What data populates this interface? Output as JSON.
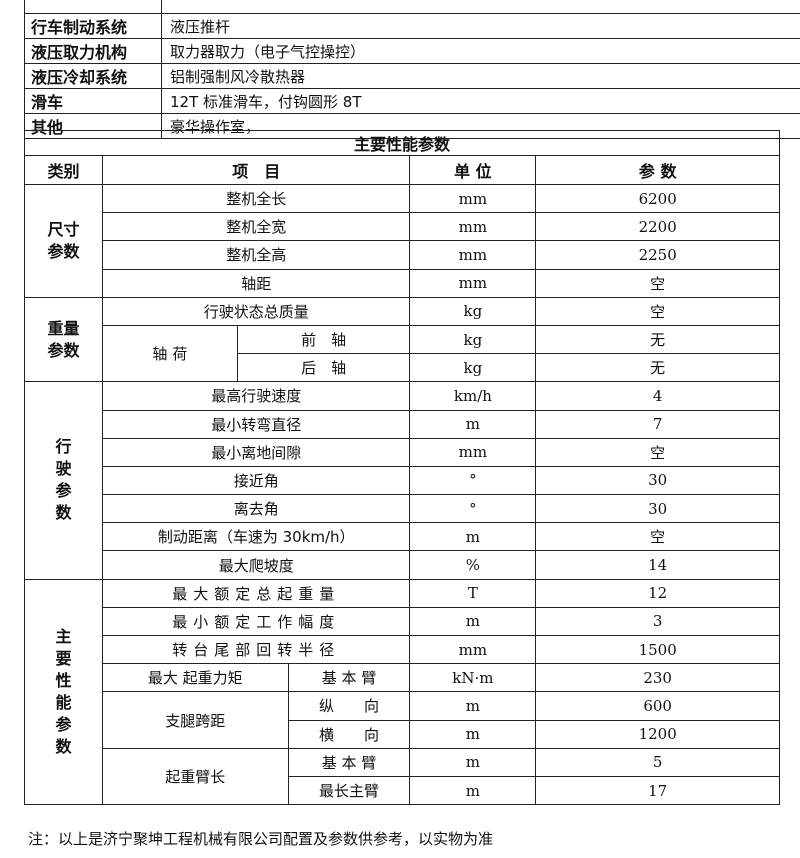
{
  "spec": [
    {
      "k": "",
      "v": ""
    },
    {
      "k": "行车制动系统",
      "v": "液压推杆"
    },
    {
      "k": "液压取力机构",
      "v": "取力器取力（电子气控操控）"
    },
    {
      "k": "液压冷却系统",
      "v": "铝制强制风冷散热器"
    },
    {
      "k": "滑车",
      "v": "12T 标准滑车，付钩圆形 8T"
    },
    {
      "k": "其他",
      "v": "豪华操作室，"
    }
  ],
  "main": {
    "title": "主要性能参数",
    "headers": [
      "类别",
      "项　目",
      "单 位",
      "参 数"
    ],
    "cats": [
      "尺寸参数",
      "重量参数",
      "行驶参数",
      "主要性能参数"
    ],
    "size": [
      [
        "整机全长",
        "mm",
        "6200"
      ],
      [
        "整机全宽",
        "mm",
        "2200"
      ],
      [
        "整机全高",
        "mm",
        "2250"
      ],
      [
        "轴距",
        "mm",
        "空"
      ]
    ],
    "weight": {
      "total": [
        "行驶状态总质量",
        "kg",
        "空"
      ],
      "axle": "轴 荷",
      "front": [
        "前　轴",
        "kg",
        "无"
      ],
      "rear": [
        "后　轴",
        "kg",
        "无"
      ]
    },
    "travel": [
      [
        "最高行驶速度",
        "km/h",
        "4"
      ],
      [
        "最小转弯直径",
        "m",
        "7"
      ],
      [
        "最小离地间隙",
        "mm",
        "空"
      ],
      [
        "接近角",
        "°",
        "30"
      ],
      [
        "离去角",
        "°",
        "30"
      ],
      [
        "制动距离（车速为 30km/h）",
        "m",
        "空"
      ],
      [
        "最大爬坡度",
        "%",
        "14"
      ]
    ],
    "perf": {
      "rows": [
        [
          "最大额定总起重量",
          "T",
          "12"
        ],
        [
          "最小额定工作幅度",
          "m",
          "3"
        ],
        [
          "转台尾部回转半径",
          "mm",
          "1500"
        ]
      ],
      "moment": {
        "label": "最大 起重力矩",
        "sub": "基 本 臂",
        "unit": "kN·m",
        "val": "230"
      },
      "outrigger": {
        "label": "支腿跨距",
        "a": [
          "纵　　向",
          "m",
          "600"
        ],
        "b": [
          "横　　向",
          "m",
          "1200"
        ]
      },
      "boom": {
        "label": "起重臂长",
        "a": [
          "基 本 臂",
          "m",
          "5"
        ],
        "b": [
          "最长主臂",
          "m",
          "17"
        ]
      }
    }
  },
  "note": "注：以上是济宁聚坤工程机械有限公司配置及参数供参考，以实物为准"
}
